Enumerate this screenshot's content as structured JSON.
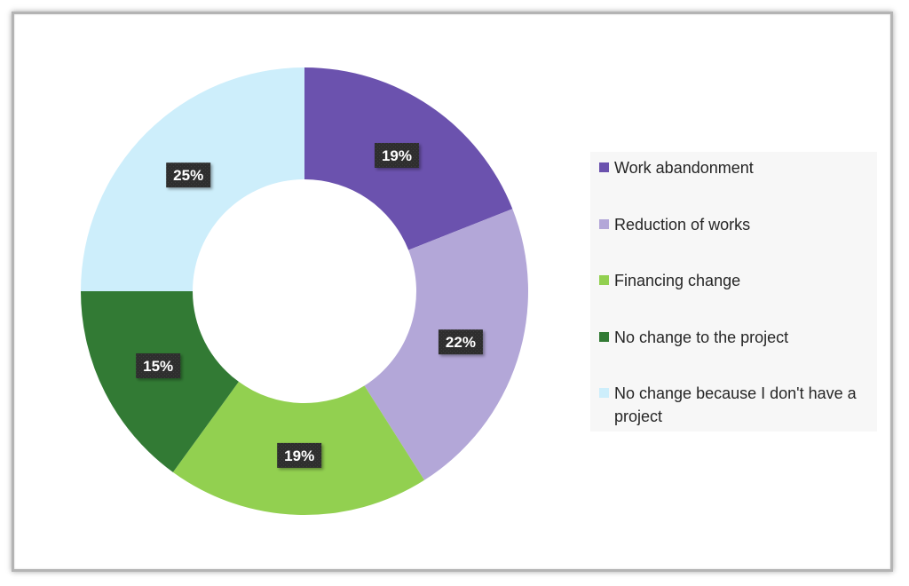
{
  "chart_data": {
    "type": "pie",
    "variant": "donut",
    "title": "",
    "categories": [
      "Work abandonment",
      "Reduction of works",
      "Financing change",
      "No change to the project",
      "No change because I don't have a project"
    ],
    "values": [
      19,
      22,
      19,
      15,
      25
    ],
    "value_labels": [
      "19%",
      "22%",
      "19%",
      "15%",
      "25%"
    ],
    "colors": [
      "#6b52ae",
      "#b3a7d8",
      "#92d050",
      "#327a34",
      "#cdeefb"
    ],
    "legend": {
      "placement": "right",
      "items": [
        {
          "label": "Work abandonment",
          "color": "#6b52ae"
        },
        {
          "label": "Reduction of works",
          "color": "#b3a7d8"
        },
        {
          "label": "Financing change",
          "color": "#92d050"
        },
        {
          "label": "No change to the project",
          "color": "#327a34"
        },
        {
          "label": "No change because I don't have a project",
          "color": "#cdeefb"
        }
      ]
    }
  }
}
